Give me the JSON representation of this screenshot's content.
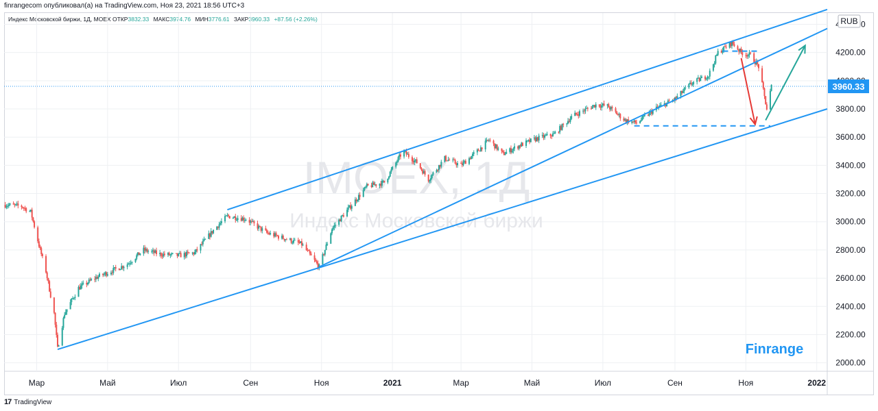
{
  "header": {
    "published_line": "finrangecom опубликовал(а) на TradingView.com, Ноя 23, 2021 18:56 UTC+3"
  },
  "legend": {
    "symbol_line": "Индекс Московской биржи, 1Д, MOEX",
    "open_label": "ОТКР",
    "open_value": "3832.33",
    "high_label": "МАКС",
    "high_value": "3974.76",
    "low_label": "МИН",
    "low_value": "3776.61",
    "close_label": "ЗАКР",
    "close_value": "3960.33",
    "change": "+87.56 (+2.26%)"
  },
  "watermark": {
    "ticker": "IMOEX, 1Д",
    "name": "Индекс Московской биржи"
  },
  "branding": {
    "label": "Finrange"
  },
  "footer": {
    "tradingview": "TradingView",
    "tv_logo": "17"
  },
  "colors": {
    "up": "#26a69a",
    "down": "#ef5350",
    "channel": "#2196f3",
    "price_tag": "#2196f3",
    "arrow_down": "#e53935",
    "arrow_up": "#26a69a"
  },
  "chart_data": {
    "type": "candlestick",
    "currency_label": "RUB",
    "last_price": "3960.33",
    "y_ticks": [
      "2000.00",
      "2200.00",
      "2400.00",
      "2600.00",
      "2800.00",
      "3000.00",
      "3200.00",
      "3400.00",
      "3600.00",
      "3800.00",
      "4000.00",
      "4200.00",
      "4400.00"
    ],
    "ylim": [
      1940,
      4480
    ],
    "x_ticks": [
      {
        "label": "Мар",
        "date": "2020-03-01",
        "bold": false
      },
      {
        "label": "Май",
        "date": "2020-05-01",
        "bold": false
      },
      {
        "label": "Июл",
        "date": "2020-07-01",
        "bold": false
      },
      {
        "label": "Сен",
        "date": "2020-09-01",
        "bold": false
      },
      {
        "label": "Ноя",
        "date": "2020-11-01",
        "bold": false
      },
      {
        "label": "2021",
        "date": "2021-01-01",
        "bold": true
      },
      {
        "label": "Мар",
        "date": "2021-03-01",
        "bold": false
      },
      {
        "label": "Май",
        "date": "2021-05-01",
        "bold": false
      },
      {
        "label": "Июл",
        "date": "2021-07-01",
        "bold": false
      },
      {
        "label": "Сен",
        "date": "2021-09-01",
        "bold": false
      },
      {
        "label": "Ноя",
        "date": "2021-11-01",
        "bold": false
      },
      {
        "label": "2022",
        "date": "2022-01-01",
        "bold": true
      }
    ],
    "xlim": [
      "2020-02-02",
      "2022-01-10"
    ],
    "price_path": [
      [
        "2020-02-03",
        3120
      ],
      [
        "2020-02-17",
        3110
      ],
      [
        "2020-02-25",
        3070
      ],
      [
        "2020-03-04",
        2800
      ],
      [
        "2020-03-09",
        2650
      ],
      [
        "2020-03-16",
        2350
      ],
      [
        "2020-03-19",
        2100
      ],
      [
        "2020-03-25",
        2350
      ],
      [
        "2020-04-06",
        2530
      ],
      [
        "2020-04-20",
        2600
      ],
      [
        "2020-05-04",
        2650
      ],
      [
        "2020-05-18",
        2700
      ],
      [
        "2020-06-01",
        2800
      ],
      [
        "2020-06-15",
        2770
      ],
      [
        "2020-07-01",
        2760
      ],
      [
        "2020-07-15",
        2780
      ],
      [
        "2020-08-01",
        2950
      ],
      [
        "2020-08-12",
        3040
      ],
      [
        "2020-08-28",
        3020
      ],
      [
        "2020-09-15",
        2920
      ],
      [
        "2020-10-01",
        2880
      ],
      [
        "2020-10-15",
        2840
      ],
      [
        "2020-10-30",
        2680
      ],
      [
        "2020-11-10",
        2950
      ],
      [
        "2020-11-25",
        3100
      ],
      [
        "2020-12-10",
        3250
      ],
      [
        "2020-12-25",
        3280
      ],
      [
        "2021-01-10",
        3500
      ],
      [
        "2021-01-22",
        3420
      ],
      [
        "2021-02-01",
        3300
      ],
      [
        "2021-02-15",
        3450
      ],
      [
        "2021-03-01",
        3400
      ],
      [
        "2021-03-15",
        3500
      ],
      [
        "2021-03-25",
        3580
      ],
      [
        "2021-04-06",
        3480
      ],
      [
        "2021-04-20",
        3540
      ],
      [
        "2021-05-05",
        3590
      ],
      [
        "2021-05-20",
        3620
      ],
      [
        "2021-06-05",
        3750
      ],
      [
        "2021-06-25",
        3830
      ],
      [
        "2021-07-05",
        3820
      ],
      [
        "2021-07-20",
        3720
      ],
      [
        "2021-07-30",
        3700
      ],
      [
        "2021-08-15",
        3800
      ],
      [
        "2021-09-01",
        3870
      ],
      [
        "2021-09-15",
        3980
      ],
      [
        "2021-09-30",
        4040
      ],
      [
        "2021-10-08",
        4200
      ],
      [
        "2021-10-20",
        4270
      ],
      [
        "2021-10-28",
        4200
      ],
      [
        "2021-11-05",
        4180
      ],
      [
        "2021-11-12",
        4100
      ],
      [
        "2021-11-19",
        3800
      ],
      [
        "2021-11-23",
        3960
      ]
    ],
    "annotations": {
      "channel_lines": [
        {
          "from": [
            "2020-03-19",
            2095
          ],
          "to": [
            "2022-01-10",
            3800
          ]
        },
        {
          "from": [
            "2020-08-12",
            3085
          ],
          "to": [
            "2022-01-10",
            4505
          ]
        },
        {
          "from": [
            "2020-10-30",
            2680
          ],
          "to": [
            "2022-01-10",
            4370
          ]
        }
      ],
      "support_dashed": {
        "from": [
          "2021-07-28",
          3680
        ],
        "to": [
          "2021-11-22",
          3680
        ]
      },
      "top_dashed": {
        "from": [
          "2021-10-12",
          4210
        ],
        "to": [
          "2021-11-12",
          4210
        ]
      },
      "arrow_down": {
        "from": [
          "2021-10-28",
          4160
        ],
        "to": [
          "2021-11-09",
          3690
        ]
      },
      "arrow_up": {
        "from": [
          "2021-11-18",
          3720
        ],
        "to": [
          "2021-12-22",
          4250
        ]
      }
    }
  }
}
